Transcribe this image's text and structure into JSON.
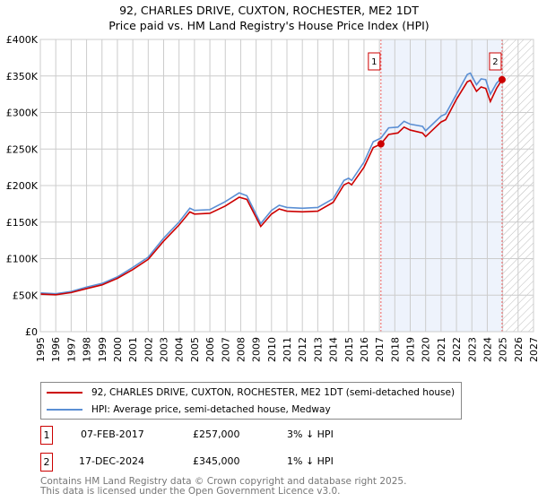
{
  "chart_data": {
    "type": "line",
    "title": "92, CHARLES DRIVE, CUXTON, ROCHESTER, ME2 1DT",
    "subtitle": "Price paid vs. HM Land Registry's House Price Index (HPI)",
    "xlim": [
      1995,
      2027
    ],
    "ylim": [
      0,
      400000
    ],
    "y_ticks": [
      {
        "v": 0,
        "l": "£0"
      },
      {
        "v": 50000,
        "l": "£50K"
      },
      {
        "v": 100000,
        "l": "£100K"
      },
      {
        "v": 150000,
        "l": "£150K"
      },
      {
        "v": 200000,
        "l": "£200K"
      },
      {
        "v": 250000,
        "l": "£250K"
      },
      {
        "v": 300000,
        "l": "£300K"
      },
      {
        "v": 350000,
        "l": "£350K"
      },
      {
        "v": 400000,
        "l": "£400K"
      }
    ],
    "x_ticks": [
      "1995",
      "1996",
      "1997",
      "1998",
      "1999",
      "2000",
      "2001",
      "2002",
      "2003",
      "2004",
      "2005",
      "2006",
      "2007",
      "2008",
      "2009",
      "2010",
      "2011",
      "2012",
      "2013",
      "2014",
      "2015",
      "2016",
      "2017",
      "2018",
      "2019",
      "2020",
      "2021",
      "2022",
      "2023",
      "2024",
      "2025",
      "2026",
      "2027"
    ],
    "grid": true,
    "series": [
      {
        "name": "HPI: Average price, semi-detached house, Medway",
        "color": "#5b8fd4",
        "x": [
          1995,
          1996,
          1997,
          1998,
          1999,
          2000,
          2001,
          2002,
          2003,
          2004,
          2004.7,
          2005,
          2006,
          2007,
          2007.9,
          2008.4,
          2009.3,
          2010,
          2010.5,
          2011,
          2012,
          2013,
          2014,
          2014.7,
          2015,
          2015.2,
          2016,
          2016.6,
          2017.1,
          2017.6,
          2018.2,
          2018.6,
          2019,
          2019.8,
          2020,
          2021,
          2021.3,
          2022,
          2022.7,
          2022.9,
          2023.3,
          2023.6,
          2023.9,
          2024.2,
          2024.6,
          2024.96
        ],
        "y": [
          53000,
          52000,
          55000,
          61000,
          66000,
          75000,
          88000,
          102000,
          128000,
          150000,
          169000,
          166000,
          167000,
          178000,
          190000,
          186000,
          148000,
          166000,
          173000,
          170000,
          169000,
          170000,
          182000,
          207000,
          210000,
          207000,
          232000,
          260000,
          265000,
          279000,
          280000,
          288000,
          284000,
          281000,
          275000,
          295000,
          298000,
          325000,
          352000,
          354000,
          338000,
          346000,
          345000,
          325000,
          340000,
          348000
        ]
      },
      {
        "name": "92, CHARLES DRIVE, CUXTON, ROCHESTER, ME2 1DT (semi-detached house)",
        "color": "#cc0000",
        "x": [
          1995,
          1996,
          1997,
          1998,
          1999,
          2000,
          2001,
          2002,
          2003,
          2004,
          2004.7,
          2005,
          2006,
          2007,
          2007.9,
          2008.4,
          2009.3,
          2010,
          2010.5,
          2011,
          2012,
          2013,
          2014,
          2014.7,
          2015,
          2015.2,
          2016,
          2016.6,
          2017.1,
          2017.6,
          2018.2,
          2018.6,
          2019,
          2019.8,
          2020,
          2021,
          2021.3,
          2022,
          2022.7,
          2022.9,
          2023.3,
          2023.6,
          2023.9,
          2024.2,
          2024.6,
          2024.96
        ],
        "y": [
          51500,
          50500,
          53500,
          59000,
          64000,
          73000,
          85000,
          99000,
          124000,
          146000,
          164000,
          161000,
          162000,
          172000,
          184000,
          181000,
          144000,
          161000,
          168000,
          165000,
          164000,
          165000,
          177000,
          201000,
          204000,
          201000,
          225000,
          252000,
          257000,
          270000,
          272000,
          280000,
          276000,
          272000,
          267000,
          287000,
          290000,
          318000,
          342000,
          344000,
          329000,
          335000,
          333000,
          315000,
          333000,
          345000
        ]
      }
    ],
    "sales": [
      {
        "n": "1",
        "x": 2017.1,
        "y": 257000,
        "date": "07-FEB-2017",
        "price": "£257,000",
        "hpi": "3% ↓ HPI"
      },
      {
        "n": "2",
        "x": 2024.96,
        "y": 345000,
        "date": "17-DEC-2024",
        "price": "£345,000",
        "hpi": "1% ↓ HPI"
      }
    ]
  },
  "legend": [
    "92, CHARLES DRIVE, CUXTON, ROCHESTER, ME2 1DT (semi-detached house)",
    "HPI: Average price, semi-detached house, Medway"
  ],
  "footer": [
    "Contains HM Land Registry data © Crown copyright and database right 2025.",
    "This data is licensed under the Open Government Licence v3.0."
  ]
}
